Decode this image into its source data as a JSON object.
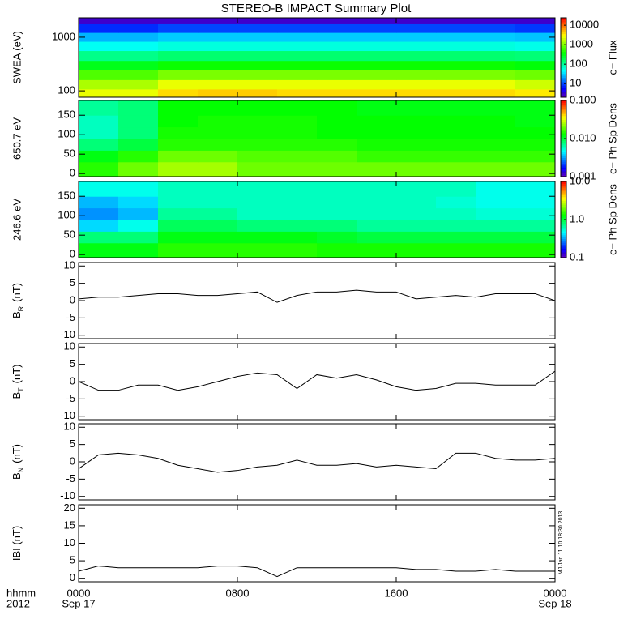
{
  "title": "STEREO-B IMPACT Summary Plot",
  "corner_labels": [
    "hhmm",
    "2012"
  ],
  "timestamp": "MJ Jan 11 10:18:30 2013",
  "chart_data": [
    {
      "type": "heatmap",
      "ylabel": "SWEA (eV)",
      "log_y": true,
      "ylim": [
        76,
        2300
      ],
      "yticks": [
        100,
        1000
      ],
      "x": [
        1,
        3,
        5,
        7,
        9,
        11,
        13,
        15,
        17,
        19,
        21,
        23
      ],
      "xlim": [
        0,
        24
      ],
      "y": [
        90,
        130,
        200,
        300,
        450,
        700,
        1000,
        1500,
        2100
      ],
      "values": [
        [
          2500,
          2500,
          4000,
          4500,
          4500,
          4000,
          4000,
          4000,
          4000,
          4000,
          4000,
          3500
        ],
        [
          1500,
          1500,
          2500,
          2500,
          2500,
          2500,
          2500,
          2500,
          2500,
          2500,
          2500,
          2000
        ],
        [
          700,
          700,
          1000,
          1000,
          1000,
          1000,
          1000,
          1000,
          1000,
          1000,
          1000,
          900
        ],
        [
          300,
          300,
          400,
          400,
          400,
          400,
          400,
          400,
          400,
          400,
          400,
          350
        ],
        [
          120,
          120,
          150,
          150,
          150,
          150,
          150,
          150,
          150,
          150,
          150,
          140
        ],
        [
          50,
          50,
          60,
          60,
          60,
          60,
          60,
          60,
          60,
          60,
          60,
          55
        ],
        [
          25,
          25,
          30,
          30,
          30,
          30,
          30,
          30,
          30,
          30,
          30,
          28
        ],
        [
          8,
          8,
          10,
          10,
          10,
          10,
          10,
          10,
          10,
          10,
          10,
          9
        ],
        [
          3,
          3,
          3,
          3,
          3,
          3,
          3,
          3,
          3,
          3,
          3,
          3
        ]
      ],
      "zlim": [
        2,
        24000
      ],
      "zticks": [
        10,
        100,
        1000,
        10000
      ],
      "colorbar_label": "e− Flux"
    },
    {
      "type": "heatmap",
      "ylabel": "650.7 eV",
      "ylim": [
        -8,
        188
      ],
      "yticks": [
        0,
        50,
        100,
        150
      ],
      "x": [
        1,
        3,
        5,
        7,
        9,
        11,
        13,
        15,
        17,
        19,
        21,
        23
      ],
      "xlim": [
        0,
        24
      ],
      "y": [
        15,
        45,
        75,
        105,
        135,
        165
      ],
      "values": [
        [
          0.015,
          0.02,
          0.025,
          0.025,
          0.02,
          0.02,
          0.02,
          0.02,
          0.02,
          0.02,
          0.02,
          0.02
        ],
        [
          0.012,
          0.015,
          0.02,
          0.02,
          0.018,
          0.018,
          0.018,
          0.016,
          0.016,
          0.016,
          0.016,
          0.016
        ],
        [
          0.008,
          0.01,
          0.015,
          0.015,
          0.015,
          0.015,
          0.015,
          0.014,
          0.014,
          0.014,
          0.014,
          0.014
        ],
        [
          0.006,
          0.008,
          0.014,
          0.014,
          0.014,
          0.014,
          0.013,
          0.013,
          0.013,
          0.013,
          0.013,
          0.013
        ],
        [
          0.006,
          0.008,
          0.013,
          0.014,
          0.014,
          0.014,
          0.013,
          0.013,
          0.013,
          0.013,
          0.013,
          0.012
        ],
        [
          0.007,
          0.008,
          0.013,
          0.013,
          0.013,
          0.013,
          0.013,
          0.012,
          0.012,
          0.012,
          0.012,
          0.012
        ]
      ],
      "zlim": [
        0.001,
        0.1
      ],
      "zticks": [
        {
          "value": 0.001,
          "label": "0.001"
        },
        {
          "value": 0.01,
          "label": "0.010"
        },
        {
          "value": 0.1,
          "label": "0.100"
        }
      ],
      "colorbar_label": "e− Ph Sp Dens"
    },
    {
      "type": "heatmap",
      "ylabel": "246.6 eV",
      "ylim": [
        -8,
        188
      ],
      "yticks": [
        0,
        50,
        100,
        150
      ],
      "x": [
        1,
        3,
        5,
        7,
        9,
        11,
        13,
        15,
        17,
        19,
        21,
        23
      ],
      "xlim": [
        0,
        24
      ],
      "y": [
        15,
        45,
        75,
        105,
        135,
        165
      ],
      "values": [
        [
          1.2,
          1.2,
          1.5,
          1.5,
          1.5,
          1.5,
          1.4,
          1.4,
          1.4,
          1.4,
          1.4,
          1.4
        ],
        [
          0.8,
          0.8,
          1.2,
          1.2,
          1.2,
          1.2,
          1.1,
          1.0,
          1.0,
          1.0,
          1.0,
          1.0
        ],
        [
          0.4,
          0.5,
          0.9,
          0.9,
          0.8,
          0.8,
          0.8,
          0.7,
          0.7,
          0.7,
          0.7,
          0.7
        ],
        [
          0.3,
          0.35,
          0.7,
          0.7,
          0.6,
          0.6,
          0.6,
          0.6,
          0.6,
          0.6,
          0.55,
          0.55
        ],
        [
          0.35,
          0.4,
          0.6,
          0.6,
          0.6,
          0.6,
          0.6,
          0.6,
          0.6,
          0.55,
          0.5,
          0.5
        ],
        [
          0.5,
          0.5,
          0.6,
          0.6,
          0.6,
          0.6,
          0.6,
          0.6,
          0.6,
          0.6,
          0.5,
          0.5
        ]
      ],
      "zlim": [
        0.1,
        10
      ],
      "zticks": [
        {
          "value": 0.1,
          "label": "0.1"
        },
        {
          "value": 1,
          "label": "1.0"
        },
        {
          "value": 10,
          "label": "10.0"
        }
      ],
      "colorbar_label": "e− Ph Sp Dens"
    },
    {
      "type": "line",
      "ylabel": "B",
      "ylabel_sub": "R",
      "ylabel_unit": "(nT)",
      "color": "#000000",
      "ylim": [
        -11,
        11
      ],
      "yticks": [
        -10,
        -5,
        0,
        5,
        10
      ],
      "xlim": [
        0,
        24
      ],
      "x": [
        0,
        1,
        2,
        3,
        4,
        5,
        6,
        7,
        8,
        9,
        10,
        11,
        12,
        13,
        14,
        15,
        16,
        17,
        18,
        19,
        20,
        21,
        22,
        23,
        24
      ],
      "values": [
        0.5,
        1,
        1,
        1.5,
        2,
        2,
        1.5,
        1.5,
        2,
        2.5,
        -0.5,
        1.5,
        2.5,
        2.5,
        3,
        2.5,
        2.5,
        0.5,
        1,
        1.5,
        1,
        2,
        2,
        2,
        0
      ]
    },
    {
      "type": "line",
      "ylabel": "B",
      "ylabel_sub": "T",
      "ylabel_unit": "(nT)",
      "color": "#000000",
      "ylim": [
        -11,
        11
      ],
      "yticks": [
        -10,
        -5,
        0,
        5,
        10
      ],
      "xlim": [
        0,
        24
      ],
      "x": [
        0,
        1,
        2,
        3,
        4,
        5,
        6,
        7,
        8,
        9,
        10,
        11,
        12,
        13,
        14,
        15,
        16,
        17,
        18,
        19,
        20,
        21,
        22,
        23,
        24
      ],
      "values": [
        0,
        -2.5,
        -2.5,
        -1,
        -1,
        -2.5,
        -1.5,
        0,
        1.5,
        2.5,
        2,
        -2,
        2,
        1,
        2,
        0.5,
        -1.5,
        -2.5,
        -2,
        -0.5,
        -0.5,
        -1,
        -1,
        -1,
        3
      ]
    },
    {
      "type": "line",
      "ylabel": "B",
      "ylabel_sub": "N",
      "ylabel_unit": "(nT)",
      "color": "#000000",
      "ylim": [
        -11,
        11
      ],
      "yticks": [
        -10,
        -5,
        0,
        5,
        10
      ],
      "xlim": [
        0,
        24
      ],
      "x": [
        0,
        1,
        2,
        3,
        4,
        5,
        6,
        7,
        8,
        9,
        10,
        11,
        12,
        13,
        14,
        15,
        16,
        17,
        18,
        19,
        20,
        21,
        22,
        23,
        24
      ],
      "values": [
        -2,
        2,
        2.5,
        2,
        1,
        -1,
        -2,
        -3,
        -2.5,
        -1.5,
        -1,
        0.5,
        -1,
        -1,
        -0.5,
        -1.5,
        -1,
        -1.5,
        -2,
        2.5,
        2.5,
        1,
        0.5,
        0.5,
        1
      ]
    },
    {
      "type": "line",
      "ylabel": "IBI (nT)",
      "color": "#000000",
      "ylim": [
        -1,
        21
      ],
      "yticks": [
        0,
        5,
        10,
        15,
        20
      ],
      "xlim": [
        0,
        24
      ],
      "x": [
        0,
        1,
        2,
        3,
        4,
        5,
        6,
        7,
        8,
        9,
        10,
        11,
        12,
        13,
        14,
        15,
        16,
        17,
        18,
        19,
        20,
        21,
        22,
        23,
        24
      ],
      "values": [
        2,
        3.5,
        3,
        3,
        3,
        3,
        3,
        3.5,
        3.5,
        3,
        0.5,
        3,
        3,
        3,
        3,
        3,
        3,
        2.5,
        2.5,
        2,
        2,
        2.5,
        2,
        2,
        2
      ],
      "xticks": [
        {
          "value": 0,
          "label": "0000"
        },
        {
          "value": 8,
          "label": "0800"
        },
        {
          "value": 16,
          "label": "1600"
        },
        {
          "value": 24,
          "label": "0000"
        }
      ],
      "xtick_dates": [
        {
          "value": 0,
          "label": "Sep 17"
        },
        {
          "value": 24,
          "label": "Sep 18"
        }
      ]
    }
  ]
}
